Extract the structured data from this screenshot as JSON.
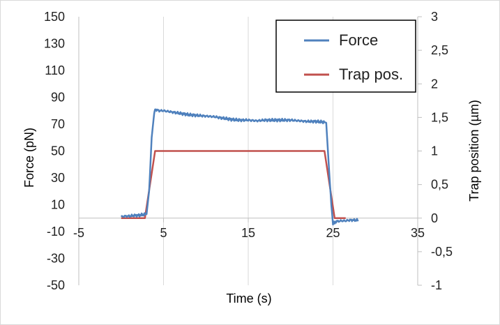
{
  "chart_data": {
    "type": "line",
    "xlabel": "Time (s)",
    "ylabel": "Force (pN)",
    "y2label": "Trap position (µm)",
    "xlim": [
      -5,
      35
    ],
    "ylim": [
      -50,
      150
    ],
    "y2lim": [
      -1,
      3
    ],
    "grid": "vertical",
    "legend_position": "top-right",
    "x_ticks": [
      "-5",
      "5",
      "15",
      "25",
      "35"
    ],
    "x_tick_values": [
      -5,
      5,
      15,
      25,
      35
    ],
    "y_ticks": [
      "150",
      "130",
      "110",
      "90",
      "70",
      "50",
      "30",
      "10",
      "-10",
      "-30",
      "-50"
    ],
    "y_tick_values": [
      150,
      130,
      110,
      90,
      70,
      50,
      30,
      10,
      -10,
      -30,
      -50
    ],
    "y2_ticks": [
      "3",
      "2,5",
      "2",
      "1,5",
      "1",
      "0,5",
      "0",
      "-0,5",
      "-1"
    ],
    "y2_tick_values": [
      3,
      2.5,
      2,
      1.5,
      1,
      0.5,
      0,
      -0.5,
      -1
    ],
    "series": [
      {
        "name": "Force",
        "color": "#4f81bd",
        "axis": "left",
        "x": [
          0,
          0.5,
          1,
          1.5,
          2,
          2.5,
          3,
          3.3,
          3.6,
          3.9,
          4.0,
          4.5,
          5,
          6,
          7,
          8,
          9,
          10,
          11,
          12,
          13,
          14,
          15,
          16,
          17,
          18,
          19,
          20,
          21,
          22,
          23,
          24,
          24.2,
          24.5,
          24.8,
          25.0,
          25.2,
          25.5,
          26,
          26.5,
          27,
          27.5,
          28
        ],
        "y": [
          1,
          1.5,
          1.5,
          2,
          2,
          2.5,
          3,
          20,
          60,
          78,
          81,
          80,
          80,
          79,
          78,
          77,
          76.5,
          76,
          75.5,
          74.5,
          73.5,
          73,
          73,
          72.5,
          73,
          73,
          73,
          73,
          72.5,
          72,
          72,
          71.5,
          71,
          40,
          10,
          -4,
          -3,
          -2.5,
          -2,
          -2,
          -1.5,
          -1.5,
          -1.5
        ]
      },
      {
        "name": "Trap pos.",
        "color": "#c0504d",
        "axis": "right",
        "x": [
          0,
          2.8,
          4.0,
          24.0,
          25.2,
          26.5
        ],
        "y": [
          0,
          0,
          1,
          1,
          0,
          0
        ]
      }
    ]
  }
}
